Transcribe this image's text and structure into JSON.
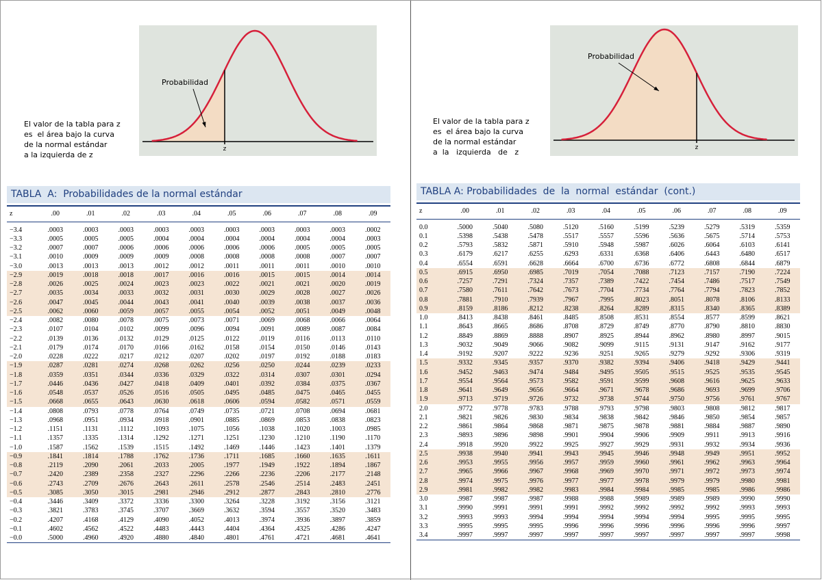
{
  "pages": [
    {
      "caption": [
        "El valor de la tabla para z",
        "es  el área bajo la curva",
        "de la normal estándar",
        "a la izquierda de z"
      ],
      "probability_label": "Probabilidad",
      "z_label": "z",
      "table": {
        "title": "TABLA  A:  Probabilidades de la normal estándar",
        "header": [
          "z",
          ".00",
          ".01",
          ".02",
          ".03",
          ".04",
          ".05",
          ".06",
          ".07",
          ".08",
          ".09"
        ],
        "rows": [
          [
            "−3.4",
            ".0003",
            ".0003",
            ".0003",
            ".0003",
            ".0003",
            ".0003",
            ".0003",
            ".0003",
            ".0003",
            ".0002"
          ],
          [
            "−3.3",
            ".0005",
            ".0005",
            ".0005",
            ".0004",
            ".0004",
            ".0004",
            ".0004",
            ".0004",
            ".0004",
            ".0003"
          ],
          [
            "−3.2",
            ".0007",
            ".0007",
            ".0006",
            ".0006",
            ".0006",
            ".0006",
            ".0006",
            ".0005",
            ".0005",
            ".0005"
          ],
          [
            "−3.1",
            ".0010",
            ".0009",
            ".0009",
            ".0009",
            ".0008",
            ".0008",
            ".0008",
            ".0008",
            ".0007",
            ".0007"
          ],
          [
            "−3.0",
            ".0013",
            ".0013",
            ".0013",
            ".0012",
            ".0012",
            ".0011",
            ".0011",
            ".0011",
            ".0010",
            ".0010"
          ],
          [
            "−2.9",
            ".0019",
            ".0018",
            ".0018",
            ".0017",
            ".0016",
            ".0016",
            ".0015",
            ".0015",
            ".0014",
            ".0014"
          ],
          [
            "−2.8",
            ".0026",
            ".0025",
            ".0024",
            ".0023",
            ".0023",
            ".0022",
            ".0021",
            ".0021",
            ".0020",
            ".0019"
          ],
          [
            "−2.7",
            ".0035",
            ".0034",
            ".0033",
            ".0032",
            ".0031",
            ".0030",
            ".0029",
            ".0028",
            ".0027",
            ".0026"
          ],
          [
            "−2.6",
            ".0047",
            ".0045",
            ".0044",
            ".0043",
            ".0041",
            ".0040",
            ".0039",
            ".0038",
            ".0037",
            ".0036"
          ],
          [
            "−2.5",
            ".0062",
            ".0060",
            ".0059",
            ".0057",
            ".0055",
            ".0054",
            ".0052",
            ".0051",
            ".0049",
            ".0048"
          ],
          [
            "−2.4",
            ".0082",
            ".0080",
            ".0078",
            ".0075",
            ".0073",
            ".0071",
            ".0069",
            ".0068",
            ".0066",
            ".0064"
          ],
          [
            "−2.3",
            ".0107",
            ".0104",
            ".0102",
            ".0099",
            ".0096",
            ".0094",
            ".0091",
            ".0089",
            ".0087",
            ".0084"
          ],
          [
            "−2.2",
            ".0139",
            ".0136",
            ".0132",
            ".0129",
            ".0125",
            ".0122",
            ".0119",
            ".0116",
            ".0113",
            ".0110"
          ],
          [
            "−2.1",
            ".0179",
            ".0174",
            ".0170",
            ".0166",
            ".0162",
            ".0158",
            ".0154",
            ".0150",
            ".0146",
            ".0143"
          ],
          [
            "−2.0",
            ".0228",
            ".0222",
            ".0217",
            ".0212",
            ".0207",
            ".0202",
            ".0197",
            ".0192",
            ".0188",
            ".0183"
          ],
          [
            "−1.9",
            ".0287",
            ".0281",
            ".0274",
            ".0268",
            ".0262",
            ".0256",
            ".0250",
            ".0244",
            ".0239",
            ".0233"
          ],
          [
            "−1.8",
            ".0359",
            ".0351",
            ".0344",
            ".0336",
            ".0329",
            ".0322",
            ".0314",
            ".0307",
            ".0301",
            ".0294"
          ],
          [
            "−1.7",
            ".0446",
            ".0436",
            ".0427",
            ".0418",
            ".0409",
            ".0401",
            ".0392",
            ".0384",
            ".0375",
            ".0367"
          ],
          [
            "−1.6",
            ".0548",
            ".0537",
            ".0526",
            ".0516",
            ".0505",
            ".0495",
            ".0485",
            ".0475",
            ".0465",
            ".0455"
          ],
          [
            "−1.5",
            ".0668",
            ".0655",
            ".0643",
            ".0630",
            ".0618",
            ".0606",
            ".0594",
            ".0582",
            ".0571",
            ".0559"
          ],
          [
            "−1.4",
            ".0808",
            ".0793",
            ".0778",
            ".0764",
            ".0749",
            ".0735",
            ".0721",
            ".0708",
            ".0694",
            ".0681"
          ],
          [
            "−1.3",
            ".0968",
            ".0951",
            ".0934",
            ".0918",
            ".0901",
            ".0885",
            ".0869",
            ".0853",
            ".0838",
            ".0823"
          ],
          [
            "−1.2",
            ".1151",
            ".1131",
            ".1112",
            ".1093",
            ".1075",
            ".1056",
            ".1038",
            ".1020",
            ".1003",
            ".0985"
          ],
          [
            "−1.1",
            ".1357",
            ".1335",
            ".1314",
            ".1292",
            ".1271",
            ".1251",
            ".1230",
            ".1210",
            ".1190",
            ".1170"
          ],
          [
            "−1.0",
            ".1587",
            ".1562",
            ".1539",
            ".1515",
            ".1492",
            ".1469",
            ".1446",
            ".1423",
            ".1401",
            ".1379"
          ],
          [
            "−0.9",
            ".1841",
            ".1814",
            ".1788",
            ".1762",
            ".1736",
            ".1711",
            ".1685",
            ".1660",
            ".1635",
            ".1611"
          ],
          [
            "−0.8",
            ".2119",
            ".2090",
            ".2061",
            ".2033",
            ".2005",
            ".1977",
            ".1949",
            ".1922",
            ".1894",
            ".1867"
          ],
          [
            "−0.7",
            ".2420",
            ".2389",
            ".2358",
            ".2327",
            ".2296",
            ".2266",
            ".2236",
            ".2206",
            ".2177",
            ".2148"
          ],
          [
            "−0.6",
            ".2743",
            ".2709",
            ".2676",
            ".2643",
            ".2611",
            ".2578",
            ".2546",
            ".2514",
            ".2483",
            ".2451"
          ],
          [
            "−0.5",
            ".3085",
            ".3050",
            ".3015",
            ".2981",
            ".2946",
            ".2912",
            ".2877",
            ".2843",
            ".2810",
            ".2776"
          ],
          [
            "−0.4",
            ".3446",
            ".3409",
            ".3372",
            ".3336",
            ".3300",
            ".3264",
            ".3228",
            ".3192",
            ".3156",
            ".3121"
          ],
          [
            "−0.3",
            ".3821",
            ".3783",
            ".3745",
            ".3707",
            ".3669",
            ".3632",
            ".3594",
            ".3557",
            ".3520",
            ".3483"
          ],
          [
            "−0.2",
            ".4207",
            ".4168",
            ".4129",
            ".4090",
            ".4052",
            ".4013",
            ".3974",
            ".3936",
            ".3897",
            ".3859"
          ],
          [
            "−0.1",
            ".4602",
            ".4562",
            ".4522",
            ".4483",
            ".4443",
            ".4404",
            ".4364",
            ".4325",
            ".4286",
            ".4247"
          ],
          [
            "−0.0",
            ".5000",
            ".4960",
            ".4920",
            ".4880",
            ".4840",
            ".4801",
            ".4761",
            ".4721",
            ".4681",
            ".4641"
          ]
        ]
      }
    },
    {
      "caption": [
        "El valor de la tabla para z",
        "es  el área bajo la curva",
        "de la normal estándar",
        "a  la   izquierda   de   z"
      ],
      "probability_label": "Probabilidad",
      "z_label": "z",
      "table": {
        "title": "TABLA A: Probabilidades  de  la  normal  estándar  (cont.)",
        "header": [
          "z",
          ".00",
          ".01",
          ".02",
          ".03",
          ".04",
          ".05",
          ".06",
          ".07",
          ".08",
          ".09"
        ],
        "rows": [
          [
            "0.0",
            ".5000",
            ".5040",
            ".5080",
            ".5120",
            ".5160",
            ".5199",
            ".5239",
            ".5279",
            ".5319",
            ".5359"
          ],
          [
            "0.1",
            ".5398",
            ".5438",
            ".5478",
            ".5517",
            ".5557",
            ".5596",
            ".5636",
            ".5675",
            ".5714",
            ".5753"
          ],
          [
            "0.2",
            ".5793",
            ".5832",
            ".5871",
            ".5910",
            ".5948",
            ".5987",
            ".6026",
            ".6064",
            ".6103",
            ".6141"
          ],
          [
            "0.3",
            ".6179",
            ".6217",
            ".6255",
            ".6293",
            ".6331",
            ".6368",
            ".6406",
            ".6443",
            ".6480",
            ".6517"
          ],
          [
            "0.4",
            ".6554",
            ".6591",
            ".6628",
            ".6664",
            ".6700",
            ".6736",
            ".6772",
            ".6808",
            ".6844",
            ".6879"
          ],
          [
            "0.5",
            ".6915",
            ".6950",
            ".6985",
            ".7019",
            ".7054",
            ".7088",
            ".7123",
            ".7157",
            ".7190",
            ".7224"
          ],
          [
            "0.6",
            ".7257",
            ".7291",
            ".7324",
            ".7357",
            ".7389",
            ".7422",
            ".7454",
            ".7486",
            ".7517",
            ".7549"
          ],
          [
            "0.7",
            ".7580",
            ".7611",
            ".7642",
            ".7673",
            ".7704",
            ".7734",
            ".7764",
            ".7794",
            ".7823",
            ".7852"
          ],
          [
            "0.8",
            ".7881",
            ".7910",
            ".7939",
            ".7967",
            ".7995",
            ".8023",
            ".8051",
            ".8078",
            ".8106",
            ".8133"
          ],
          [
            "0.9",
            ".8159",
            ".8186",
            ".8212",
            ".8238",
            ".8264",
            ".8289",
            ".8315",
            ".8340",
            ".8365",
            ".8389"
          ],
          [
            "1.0",
            ".8413",
            ".8438",
            ".8461",
            ".8485",
            ".8508",
            ".8531",
            ".8554",
            ".8577",
            ".8599",
            ".8621"
          ],
          [
            "1.1",
            ".8643",
            ".8665",
            ".8686",
            ".8708",
            ".8729",
            ".8749",
            ".8770",
            ".8790",
            ".8810",
            ".8830"
          ],
          [
            "1.2",
            ".8849",
            ".8869",
            ".8888",
            ".8907",
            ".8925",
            ".8944",
            ".8962",
            ".8980",
            ".8997",
            ".9015"
          ],
          [
            "1.3",
            ".9032",
            ".9049",
            ".9066",
            ".9082",
            ".9099",
            ".9115",
            ".9131",
            ".9147",
            ".9162",
            ".9177"
          ],
          [
            "1.4",
            ".9192",
            ".9207",
            ".9222",
            ".9236",
            ".9251",
            ".9265",
            ".9279",
            ".9292",
            ".9306",
            ".9319"
          ],
          [
            "1.5",
            ".9332",
            ".9345",
            ".9357",
            ".9370",
            ".9382",
            ".9394",
            ".9406",
            ".9418",
            ".9429",
            ".9441"
          ],
          [
            "1.6",
            ".9452",
            ".9463",
            ".9474",
            ".9484",
            ".9495",
            ".9505",
            ".9515",
            ".9525",
            ".9535",
            ".9545"
          ],
          [
            "1.7",
            ".9554",
            ".9564",
            ".9573",
            ".9582",
            ".9591",
            ".9599",
            ".9608",
            ".9616",
            ".9625",
            ".9633"
          ],
          [
            "1.8",
            ".9641",
            ".9649",
            ".9656",
            ".9664",
            ".9671",
            ".9678",
            ".9686",
            ".9693",
            ".9699",
            ".9706"
          ],
          [
            "1.9",
            ".9713",
            ".9719",
            ".9726",
            ".9732",
            ".9738",
            ".9744",
            ".9750",
            ".9756",
            ".9761",
            ".9767"
          ],
          [
            "2.0",
            ".9772",
            ".9778",
            ".9783",
            ".9788",
            ".9793",
            ".9798",
            ".9803",
            ".9808",
            ".9812",
            ".9817"
          ],
          [
            "2.1",
            ".9821",
            ".9826",
            ".9830",
            ".9834",
            ".9838",
            ".9842",
            ".9846",
            ".9850",
            ".9854",
            ".9857"
          ],
          [
            "2.2",
            ".9861",
            ".9864",
            ".9868",
            ".9871",
            ".9875",
            ".9878",
            ".9881",
            ".9884",
            ".9887",
            ".9890"
          ],
          [
            "2.3",
            ".9893",
            ".9896",
            ".9898",
            ".9901",
            ".9904",
            ".9906",
            ".9909",
            ".9911",
            ".9913",
            ".9916"
          ],
          [
            "2.4",
            ".9918",
            ".9920",
            ".9922",
            ".9925",
            ".9927",
            ".9929",
            ".9931",
            ".9932",
            ".9934",
            ".9936"
          ],
          [
            "2.5",
            ".9938",
            ".9940",
            ".9941",
            ".9943",
            ".9945",
            ".9946",
            ".9948",
            ".9949",
            ".9951",
            ".9952"
          ],
          [
            "2.6",
            ".9953",
            ".9955",
            ".9956",
            ".9957",
            ".9959",
            ".9960",
            ".9961",
            ".9962",
            ".9963",
            ".9964"
          ],
          [
            "2.7",
            ".9965",
            ".9966",
            ".9967",
            ".9968",
            ".9969",
            ".9970",
            ".9971",
            ".9972",
            ".9973",
            ".9974"
          ],
          [
            "2.8",
            ".9974",
            ".9975",
            ".9976",
            ".9977",
            ".9977",
            ".9978",
            ".9979",
            ".9979",
            ".9980",
            ".9981"
          ],
          [
            "2.9",
            ".9981",
            ".9982",
            ".9982",
            ".9983",
            ".9984",
            ".9984",
            ".9985",
            ".9985",
            ".9986",
            ".9986"
          ],
          [
            "3.0",
            ".9987",
            ".9987",
            ".9987",
            ".9988",
            ".9988",
            ".9989",
            ".9989",
            ".9989",
            ".9990",
            ".9990"
          ],
          [
            "3.1",
            ".9990",
            ".9991",
            ".9991",
            ".9991",
            ".9992",
            ".9992",
            ".9992",
            ".9992",
            ".9993",
            ".9993"
          ],
          [
            "3.2",
            ".9993",
            ".9993",
            ".9994",
            ".9994",
            ".9994",
            ".9994",
            ".9994",
            ".9995",
            ".9995",
            ".9995"
          ],
          [
            "3.3",
            ".9995",
            ".9995",
            ".9995",
            ".9996",
            ".9996",
            ".9996",
            ".9996",
            ".9996",
            ".9996",
            ".9997"
          ],
          [
            "3.4",
            ".9997",
            ".9997",
            ".9997",
            ".9997",
            ".9997",
            ".9997",
            ".9997",
            ".9997",
            ".9997",
            ".9998"
          ]
        ]
      }
    }
  ]
}
